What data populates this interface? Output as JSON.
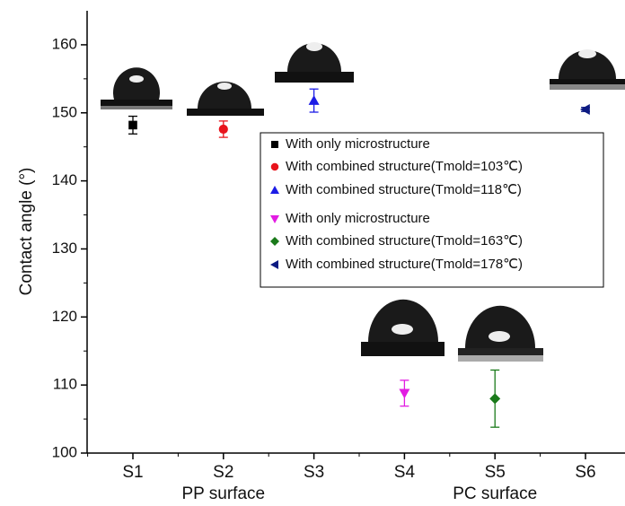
{
  "chart_data": {
    "type": "scatter",
    "y_label": "Contact angle (°)",
    "categories": [
      "S1",
      "S2",
      "S3",
      "S4",
      "S5",
      "S6"
    ],
    "groups": [
      {
        "label": "PP surface",
        "center": 1
      },
      {
        "label": "PC surface",
        "center": 4
      }
    ],
    "ylim": [
      100,
      165
    ],
    "yticks": [
      100,
      110,
      120,
      130,
      140,
      150,
      160
    ],
    "series": [
      {
        "name": "With only microstructure",
        "color": "#000000",
        "marker": "square",
        "values": [
          148.2,
          null,
          null,
          null,
          null,
          null
        ],
        "errors": [
          1.3,
          null,
          null,
          null,
          null,
          null
        ]
      },
      {
        "name": "With combined structure(Tmold=103℃)",
        "color": "#e8141c",
        "marker": "circle",
        "values": [
          null,
          147.6,
          null,
          null,
          null,
          null
        ],
        "errors": [
          null,
          1.2,
          null,
          null,
          null,
          null
        ]
      },
      {
        "name": "With combined structure(Tmold=118℃)",
        "color": "#1c1ce6",
        "marker": "triangle-up",
        "values": [
          null,
          null,
          151.8,
          null,
          null,
          null
        ],
        "errors": [
          null,
          null,
          1.7,
          null,
          null,
          null
        ]
      },
      {
        "name": "With only microstructure",
        "color": "#e21ce2",
        "marker": "triangle-down",
        "values": [
          null,
          null,
          null,
          108.8,
          null,
          null
        ],
        "errors": [
          null,
          null,
          null,
          1.9,
          null,
          null
        ]
      },
      {
        "name": "With combined structure(Tmold=163℃)",
        "color": "#1a7a1a",
        "marker": "diamond",
        "values": [
          null,
          null,
          null,
          null,
          108,
          null
        ],
        "errors": [
          null,
          null,
          null,
          null,
          4.2,
          null
        ]
      },
      {
        "name": "With combined structure(Tmold=178℃)",
        "color": "#0c1a82",
        "marker": "triangle-left",
        "values": [
          null,
          null,
          null,
          null,
          null,
          150.5
        ],
        "errors": [
          null,
          null,
          null,
          null,
          null,
          0.3
        ]
      }
    ]
  }
}
